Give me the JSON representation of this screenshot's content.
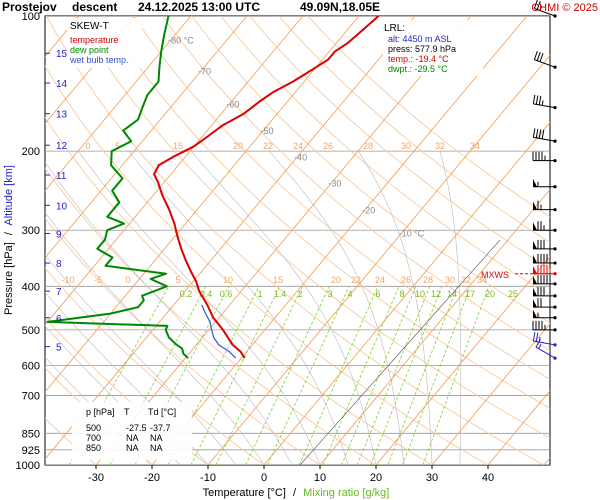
{
  "header": {
    "station": "Prostejov",
    "mode": "descent",
    "datetime": "24.12.2025 13:00 UTC",
    "coords": "49.09N,18.05E",
    "copyright": "CHMI © 2025"
  },
  "legend": {
    "title": "SKEW-T",
    "temperature": "temperature",
    "dew_point": "dew point",
    "wet_bulb": "wet bulb temp."
  },
  "lrl": {
    "title": "LRL:",
    "alt": "alt: 4450 m ASL",
    "press": "press: 577.9 hPa",
    "temp": "temp.: -19.4 °C",
    "dwpt": "dwpt.: -29.5 °C"
  },
  "axes": {
    "ylabel_pressure": "Pressure [hPa]",
    "ylabel_sep": "/",
    "ylabel_altitude": "Altitude [km]",
    "xlabel_temp": "Temperature [°C]",
    "xlabel_sep": "/",
    "xlabel_mixing": "Mixing ratio [g/kg]"
  },
  "mxws_label": "MXWS",
  "table": {
    "headers": [
      "p [hPa]",
      "T",
      "Td [°C]"
    ],
    "rows": [
      [
        "500",
        "-27.5",
        "-37.7"
      ],
      [
        "700",
        "NA",
        "NA"
      ],
      [
        "850",
        "NA",
        "NA"
      ]
    ]
  },
  "colors": {
    "temperature": "#dd0000",
    "dew_point": "#008800",
    "wet_bulb": "#3355dd",
    "isotherm": "#f4a460",
    "dry_adiabat": "#f8cba0",
    "mixing_ratio": "#88cc33",
    "moist_adiabat": "#bbbbbb",
    "altitude": "#2222cc",
    "header_red": "#cc0000"
  },
  "chart_data": {
    "type": "line",
    "title": "Prostejov descent 24.12.2025 13:00 UTC 49.09N,18.05E",
    "xlabel": "Temperature [°C] / Mixing ratio [g/kg]",
    "ylabel": "Pressure [hPa] / Altitude [km]",
    "y_scale": "log",
    "ylim": [
      1000,
      100
    ],
    "xlim": [
      -40,
      50
    ],
    "pressure_ticks": [
      100,
      200,
      300,
      400,
      500,
      600,
      700,
      850,
      925,
      1000
    ],
    "temp_ticks": [
      -30,
      -20,
      -10,
      0,
      10,
      20,
      30,
      40
    ],
    "altitude_ticks_km": [
      {
        "km": 5,
        "p": 545
      },
      {
        "km": 6,
        "p": 470
      },
      {
        "km": 7,
        "p": 410
      },
      {
        "km": 8,
        "p": 355
      },
      {
        "km": 9,
        "p": 305
      },
      {
        "km": 10,
        "p": 264
      },
      {
        "km": 11,
        "p": 226
      },
      {
        "km": 12,
        "p": 194
      },
      {
        "km": 13,
        "p": 165
      },
      {
        "km": 14,
        "p": 141
      },
      {
        "km": 15,
        "p": 121
      }
    ],
    "isotherm_labels_top": [
      {
        "t": -80,
        "label": "-80 °C",
        "p": 115
      },
      {
        "t": -70,
        "label": "-70",
        "p": 135
      },
      {
        "t": -60,
        "label": "-60",
        "p": 160
      },
      {
        "t": -50,
        "label": "-50",
        "p": 183
      },
      {
        "t": -40,
        "label": "-40",
        "p": 210
      },
      {
        "t": -30,
        "label": "-30",
        "p": 240
      },
      {
        "t": -20,
        "label": "-20",
        "p": 275
      },
      {
        "t": -10,
        "label": "-10 °C",
        "p": 310
      }
    ],
    "dry_adiabat_labels_200": [
      "0",
      "5",
      "15",
      "20",
      "22",
      "24",
      "26",
      "28",
      "30",
      "32",
      "34"
    ],
    "dry_adiabat_labels_385": [
      "-10",
      "-5",
      "0",
      "5",
      "10",
      "15",
      "20",
      "22",
      "24",
      "26",
      "28",
      "30",
      "32",
      "34"
    ],
    "mixing_ratio_values": [
      0.2,
      0.4,
      0.6,
      1,
      1.4,
      2,
      3,
      4,
      6,
      8,
      10,
      12,
      14,
      17,
      20,
      25
    ],
    "mixing_ratio_labels": [
      "0.2",
      "0.4",
      "0.6",
      "1",
      "1.4",
      "2",
      "3",
      "4",
      "6",
      "8",
      "10",
      "12",
      "14",
      "17",
      "20",
      "25"
    ],
    "series": [
      {
        "name": "temperature",
        "p": [
          578,
          560,
          540,
          500,
          470,
          440,
          410,
          390,
          370,
          350,
          330,
          310,
          290,
          270,
          250,
          235,
          225,
          215,
          205,
          200,
          195,
          185,
          175,
          165,
          155,
          148,
          140,
          135,
          130,
          125,
          120,
          115,
          110,
          105,
          100
        ],
        "t": [
          -19.4,
          -21,
          -23.5,
          -27.5,
          -31,
          -34,
          -37.5,
          -39.5,
          -42,
          -44.5,
          -47,
          -49.5,
          -52,
          -55,
          -58.5,
          -61,
          -63,
          -63.5,
          -62,
          -61,
          -60,
          -59,
          -58,
          -56,
          -55,
          -54,
          -52,
          -51,
          -50,
          -49,
          -49,
          -48,
          -47.5,
          -47,
          -46.5
        ]
      },
      {
        "name": "dew point",
        "p": [
          578,
          565,
          550,
          540,
          520,
          500,
          490,
          480,
          470,
          460,
          445,
          430,
          420,
          400,
          385,
          375,
          360,
          345,
          330,
          315,
          300,
          290,
          280,
          260,
          245,
          230,
          215,
          200,
          190,
          180,
          170,
          160,
          150,
          140,
          130,
          120,
          110,
          100
        ],
        "t": [
          -29.5,
          -31,
          -32,
          -33.5,
          -36,
          -37.7,
          -38,
          -60,
          -55,
          -50,
          -46,
          -46,
          -47,
          -44,
          -48,
          -46,
          -58,
          -58,
          -62,
          -62,
          -63,
          -61,
          -65,
          -65,
          -68,
          -68,
          -72,
          -74,
          -72,
          -75,
          -74,
          -75,
          -76,
          -76,
          -78,
          -80,
          -82,
          -84
        ]
      },
      {
        "name": "wet bulb temp.",
        "p": [
          578,
          560,
          540,
          520,
          500,
          480,
          460,
          440
        ],
        "t": [
          -21,
          -23,
          -26,
          -28,
          -29.5,
          -31,
          -33,
          -35
        ]
      }
    ],
    "wind_barbs": [
      {
        "p": 100,
        "dir": 290,
        "spd": 25
      },
      {
        "p": 130,
        "dir": 290,
        "spd": 30
      },
      {
        "p": 160,
        "dir": 280,
        "spd": 35
      },
      {
        "p": 190,
        "dir": 280,
        "spd": 40
      },
      {
        "p": 210,
        "dir": 270,
        "spd": 45
      },
      {
        "p": 240,
        "dir": 270,
        "spd": 55
      },
      {
        "p": 270,
        "dir": 270,
        "spd": 65
      },
      {
        "p": 300,
        "dir": 270,
        "spd": 75
      },
      {
        "p": 330,
        "dir": 270,
        "spd": 80
      },
      {
        "p": 355,
        "dir": 270,
        "spd": 90
      },
      {
        "p": 375,
        "dir": 270,
        "spd": 95
      },
      {
        "p": 395,
        "dir": 270,
        "spd": 90
      },
      {
        "p": 420,
        "dir": 270,
        "spd": 80
      },
      {
        "p": 445,
        "dir": 270,
        "spd": 70
      },
      {
        "p": 470,
        "dir": 270,
        "spd": 55
      },
      {
        "p": 500,
        "dir": 270,
        "spd": 45
      },
      {
        "p": 540,
        "dir": 280,
        "spd": 25
      },
      {
        "p": 578,
        "dir": 300,
        "spd": 15
      }
    ],
    "mxws_p": 375
  }
}
